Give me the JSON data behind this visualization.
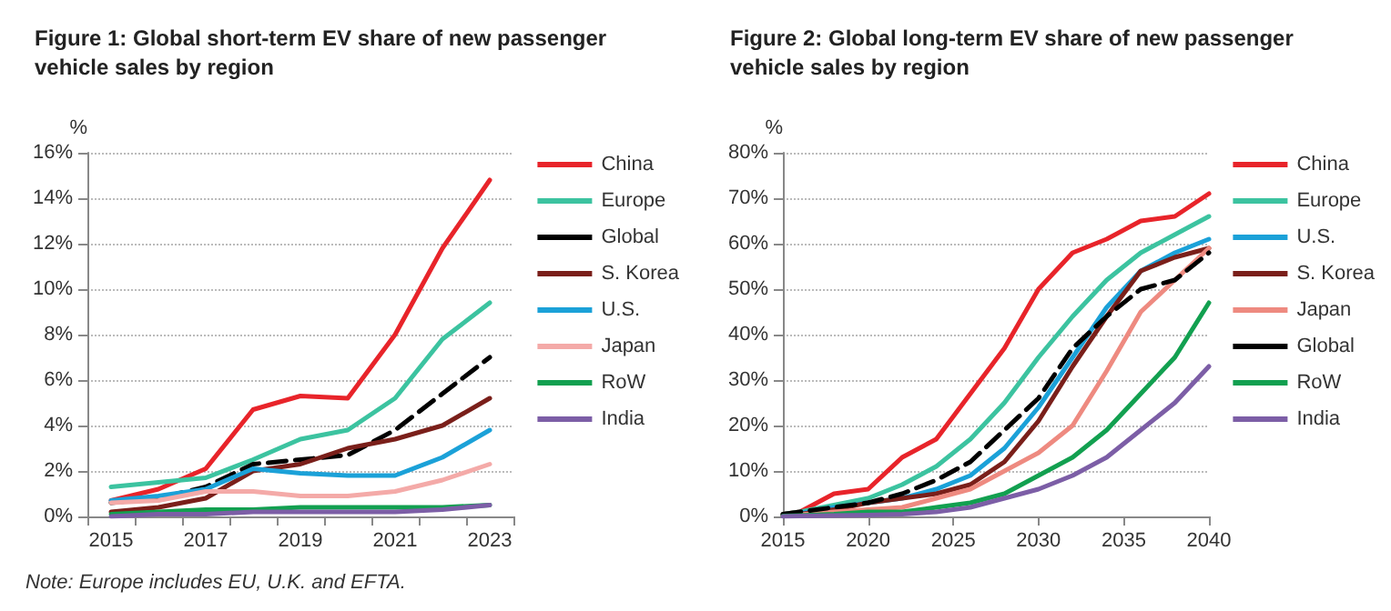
{
  "chart_data": [
    {
      "type": "line",
      "title": "Figure 1: Global short-term EV share of new passenger vehicle sales by region",
      "ylabel": "%",
      "categories": [
        "2015",
        null,
        "2017",
        null,
        "2019",
        null,
        "2021",
        null,
        "2023"
      ],
      "ylim": [
        0,
        16
      ],
      "yticks": [
        {
          "value": 0,
          "label": "0%"
        },
        {
          "value": 2,
          "label": "2%"
        },
        {
          "value": 4,
          "label": "4%"
        },
        {
          "value": 6,
          "label": "6%"
        },
        {
          "value": 8,
          "label": "8%"
        },
        {
          "value": 10,
          "label": "10%"
        },
        {
          "value": 12,
          "label": "12%"
        },
        {
          "value": 14,
          "label": "14%"
        },
        {
          "value": 16,
          "label": "16%"
        }
      ],
      "grid": "y",
      "legend": "right",
      "marker": "none",
      "annotations": [
        "Note: Europe includes EU, U.K. and EFTA."
      ],
      "series": [
        {
          "name": "China",
          "color": "#e8242a",
          "values": [
            0.7,
            1.2,
            2.1,
            4.7,
            5.3,
            5.2,
            8.0,
            11.8,
            14.8
          ]
        },
        {
          "name": "Europe",
          "color": "#3cc3a0",
          "values": [
            1.3,
            1.5,
            1.7,
            2.5,
            3.4,
            3.8,
            5.2,
            7.8,
            9.4
          ]
        },
        {
          "name": "Global",
          "color": "#000000",
          "line_style": "dashed",
          "values": [
            0.6,
            0.8,
            1.3,
            2.3,
            2.5,
            2.7,
            3.8,
            5.4,
            7.0
          ]
        },
        {
          "name": "S. Korea",
          "color": "#7a1f1a",
          "values": [
            0.2,
            0.4,
            0.8,
            2.0,
            2.3,
            3.0,
            3.4,
            4.0,
            5.2
          ]
        },
        {
          "name": "U.S.",
          "color": "#1ba1d8",
          "values": [
            0.7,
            0.9,
            1.2,
            2.1,
            1.9,
            1.8,
            1.8,
            2.6,
            3.8
          ]
        },
        {
          "name": "Japan",
          "color": "#f4aaa8",
          "values": [
            0.6,
            0.7,
            1.1,
            1.1,
            0.9,
            0.9,
            1.1,
            1.6,
            2.3
          ]
        },
        {
          "name": "RoW",
          "color": "#12a050",
          "values": [
            0.1,
            0.2,
            0.3,
            0.3,
            0.4,
            0.4,
            0.4,
            0.4,
            0.5
          ]
        },
        {
          "name": "India",
          "color": "#7c5ea6",
          "values": [
            0.0,
            0.1,
            0.1,
            0.2,
            0.2,
            0.2,
            0.2,
            0.3,
            0.5
          ]
        }
      ]
    },
    {
      "type": "line",
      "title": "Figure 2: Global long-term EV share of new passenger vehicle sales by region",
      "ylabel": "%",
      "x": [
        2015,
        2016,
        2018,
        2020,
        2022,
        2024,
        2026,
        2028,
        2030,
        2032,
        2034,
        2036,
        2038,
        2040
      ],
      "xlim": [
        2015,
        2040
      ],
      "xticks": [
        2015,
        2020,
        2025,
        2030,
        2035,
        2040
      ],
      "ylim": [
        0,
        80
      ],
      "yticks": [
        {
          "value": 0,
          "label": "0%"
        },
        {
          "value": 10,
          "label": "10%"
        },
        {
          "value": 20,
          "label": "20%"
        },
        {
          "value": 30,
          "label": "30%"
        },
        {
          "value": 40,
          "label": "40%"
        },
        {
          "value": 50,
          "label": "50%"
        },
        {
          "value": 60,
          "label": "60%"
        },
        {
          "value": 70,
          "label": "70%"
        },
        {
          "value": 80,
          "label": "80%"
        }
      ],
      "grid": "y",
      "legend": "right",
      "marker": "none",
      "series": [
        {
          "name": "China",
          "color": "#e8242a",
          "values": [
            0.5,
            1,
            5,
            6,
            13,
            17,
            27,
            37,
            50,
            58,
            61,
            65,
            66,
            71
          ]
        },
        {
          "name": "Europe",
          "color": "#3cc3a0",
          "values": [
            0.5,
            1,
            2.5,
            4,
            7,
            11,
            17,
            25,
            35,
            44,
            52,
            58,
            62,
            66
          ]
        },
        {
          "name": "U.S.",
          "color": "#1ba1d8",
          "values": [
            0.3,
            0.7,
            2,
            3,
            4,
            6,
            9,
            15,
            24,
            35,
            46,
            54,
            58,
            61
          ]
        },
        {
          "name": "S. Korea",
          "color": "#7a1f1a",
          "values": [
            0.2,
            0.5,
            1.5,
            3,
            4,
            5,
            7,
            12,
            21,
            33,
            44,
            54,
            57,
            59
          ]
        },
        {
          "name": "Japan",
          "color": "#ee8a80",
          "values": [
            0.2,
            0.4,
            1,
            1.5,
            2,
            4,
            6,
            10,
            14,
            20,
            32,
            45,
            52,
            59
          ]
        },
        {
          "name": "Global",
          "color": "#000000",
          "line_style": "dashed",
          "values": [
            0.5,
            1,
            2,
            3,
            5,
            8,
            12,
            19,
            26,
            37,
            44,
            50,
            52,
            58
          ]
        },
        {
          "name": "RoW",
          "color": "#12a050",
          "values": [
            0.1,
            0.2,
            0.5,
            1,
            1,
            2,
            3,
            5,
            9,
            13,
            19,
            27,
            35,
            47
          ]
        },
        {
          "name": "India",
          "color": "#7c5ea6",
          "values": [
            0,
            0.1,
            0.2,
            0.3,
            0.5,
            1,
            2,
            4,
            6,
            9,
            13,
            19,
            25,
            33
          ]
        }
      ]
    }
  ]
}
